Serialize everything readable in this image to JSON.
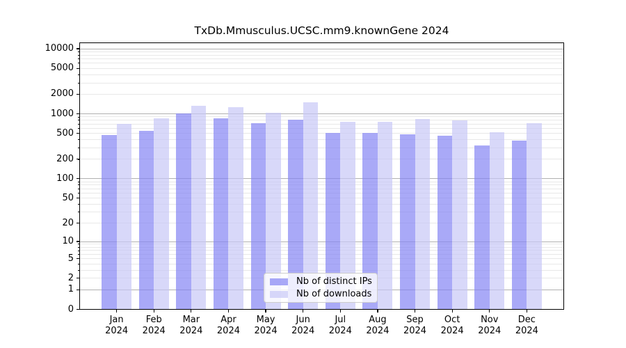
{
  "chart_data": {
    "type": "bar",
    "title": "TxDb.Mmusculus.UCSC.mm9.knownGene 2024",
    "categories": [
      "Jan 2024",
      "Feb 2024",
      "Mar 2024",
      "Apr 2024",
      "May 2024",
      "Jun 2024",
      "Jul 2024",
      "Aug 2024",
      "Sep 2024",
      "Oct 2024",
      "Nov 2024",
      "Dec 2024"
    ],
    "month_labels": [
      "Jan",
      "Feb",
      "Mar",
      "Apr",
      "May",
      "Jun",
      "Jul",
      "Aug",
      "Sep",
      "Oct",
      "Nov",
      "Dec"
    ],
    "year_label": "2024",
    "series": [
      {
        "name": "Nb of distinct IPs",
        "color": "#8585f3",
        "values": [
          470,
          555,
          1010,
          860,
          715,
          805,
          515,
          505,
          490,
          465,
          325,
          385
        ]
      },
      {
        "name": "Nb of downloads",
        "color": "#c7c7f6",
        "values": [
          695,
          855,
          1330,
          1270,
          1045,
          1510,
          750,
          750,
          840,
          790,
          525,
          715
        ]
      }
    ],
    "bar_alpha": 0.7,
    "yscale": "log1p",
    "ylim": [
      0,
      12500
    ],
    "yticks": [
      0,
      1,
      2,
      5,
      10,
      20,
      50,
      100,
      200,
      500,
      1000,
      2000,
      5000,
      10000
    ],
    "ytick_labels": [
      "0",
      "1",
      "2",
      "5",
      "10",
      "20",
      "50",
      "100",
      "200",
      "500",
      "1000",
      "2000",
      "5000",
      "10000"
    ],
    "grid": "on",
    "legend_position": "lower-center-inside",
    "colors": {
      "grid_major": "#b0b0b0",
      "grid_minor": "#e8e8e8",
      "frame": "#000000",
      "text": "#000000"
    }
  }
}
